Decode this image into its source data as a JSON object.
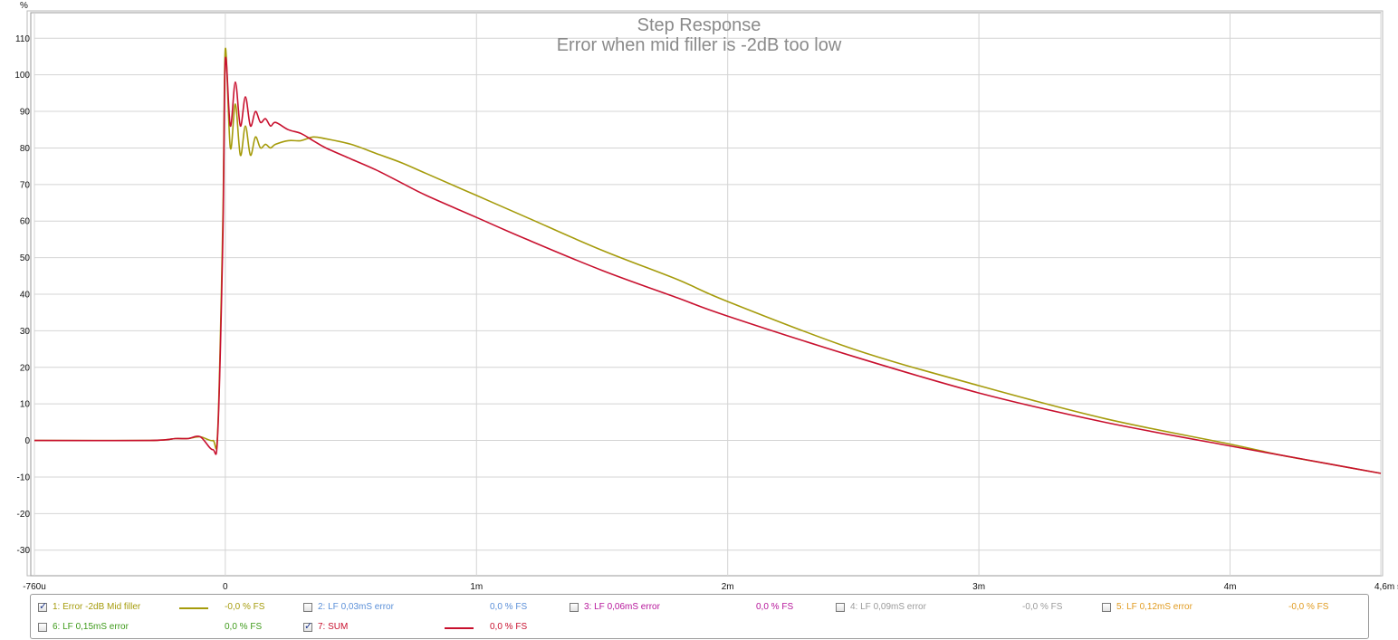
{
  "chart_data": {
    "type": "line",
    "title": "Step Response",
    "subtitle": "Error when mid filler is -2dB too low",
    "ylabel": "%",
    "xlabel": "s",
    "xlim": [
      -0.00076,
      0.0046
    ],
    "ylim": [
      -37,
      117
    ],
    "grid": true,
    "x_ticks": [
      {
        "value": -0.00076,
        "label": "-760u"
      },
      {
        "value": 0,
        "label": "0"
      },
      {
        "value": 0.001,
        "label": "1m"
      },
      {
        "value": 0.002,
        "label": "2m"
      },
      {
        "value": 0.003,
        "label": "3m"
      },
      {
        "value": 0.004,
        "label": "4m"
      },
      {
        "value": 0.0046,
        "label": "4,6m s"
      }
    ],
    "y_ticks": [
      110,
      100,
      90,
      80,
      70,
      60,
      50,
      40,
      30,
      20,
      10,
      0,
      -10,
      -20,
      -30
    ],
    "series": [
      {
        "name": "1: Error -2dB Mid filler",
        "color": "#a59b0b",
        "x": [
          -0.00076,
          -0.0003,
          -0.0002,
          -0.00015,
          -0.0001,
          -5e-05,
          -3e-05,
          -1e-05,
          0.0,
          2e-05,
          4e-05,
          6e-05,
          8e-05,
          0.0001,
          0.00012,
          0.00014,
          0.00016,
          0.00018,
          0.0002,
          0.00025,
          0.0003,
          0.00035,
          0.0004,
          0.0005,
          0.0006,
          0.0007,
          0.0008,
          0.001,
          0.0012,
          0.0015,
          0.0018,
          0.002,
          0.0025,
          0.003,
          0.0035,
          0.004,
          0.0042,
          0.0044,
          0.0046
        ],
        "y": [
          0,
          0,
          0.5,
          0.5,
          1,
          0,
          3,
          60,
          107,
          80,
          92,
          78,
          86,
          78,
          83,
          80,
          81,
          80,
          81,
          82,
          82,
          83,
          82.5,
          81,
          78.5,
          76,
          73,
          67,
          61,
          52,
          44,
          38,
          25,
          15,
          6,
          -1,
          -4,
          -6.5,
          -9
        ]
      },
      {
        "name": "2: LF 0,03mS error",
        "color": "#5a8fd8",
        "hidden": true
      },
      {
        "name": "3: LF 0,06mS error",
        "color": "#b6159a",
        "hidden": true
      },
      {
        "name": "4: LF 0,09mS error",
        "color": "#9a9a9a",
        "hidden": true
      },
      {
        "name": "5: LF 0,12mS error",
        "color": "#e09a1e",
        "hidden": true
      },
      {
        "name": "6: LF 0,15mS error",
        "color": "#3e9a1a",
        "hidden": true
      },
      {
        "name": "7: SUM",
        "color": "#c8102e",
        "x": [
          -0.00076,
          -0.0003,
          -0.0002,
          -0.00015,
          -0.0001,
          -5e-05,
          -3e-05,
          -1e-05,
          0.0,
          2e-05,
          4e-05,
          6e-05,
          8e-05,
          0.0001,
          0.00012,
          0.00014,
          0.00016,
          0.00018,
          0.0002,
          0.00025,
          0.0003,
          0.00035,
          0.0004,
          0.0005,
          0.0006,
          0.0007,
          0.0008,
          0.001,
          0.0012,
          0.0015,
          0.0018,
          0.002,
          0.0025,
          0.003,
          0.0035,
          0.004,
          0.0042,
          0.0044,
          0.0046
        ],
        "y": [
          0,
          0,
          0.5,
          0.5,
          1,
          -2.5,
          2,
          55,
          104,
          86,
          98,
          86,
          94,
          86,
          90,
          87,
          88,
          86,
          87,
          85,
          84,
          82,
          80,
          77,
          74,
          70.5,
          67,
          61,
          55,
          46.5,
          39,
          34,
          23,
          13,
          5,
          -1.5,
          -4,
          -6.5,
          -9
        ]
      }
    ]
  },
  "legend": {
    "items": [
      {
        "label": "1: Error -2dB Mid filler",
        "value": "-0,0 % FS",
        "checked": true,
        "color": "#a59b0b",
        "swatch": true
      },
      {
        "label": "2: LF 0,03mS error",
        "value": "0,0 % FS",
        "checked": false,
        "color": "#5a8fd8",
        "swatch": false
      },
      {
        "label": "3: LF 0,06mS error",
        "value": "0,0 % FS",
        "checked": false,
        "color": "#b6159a",
        "swatch": false
      },
      {
        "label": "4: LF 0,09mS error",
        "value": "-0,0 % FS",
        "checked": false,
        "color": "#9a9a9a",
        "swatch": false
      },
      {
        "label": "5: LF 0,12mS error",
        "value": "-0,0 % FS",
        "checked": false,
        "color": "#e09a1e",
        "swatch": false
      },
      {
        "label": "6: LF 0,15mS error",
        "value": "0,0 % FS",
        "checked": false,
        "color": "#3e9a1a",
        "swatch": false
      },
      {
        "label": "7: SUM",
        "value": "0,0 % FS",
        "checked": true,
        "color": "#c8102e",
        "swatch": true
      }
    ]
  }
}
